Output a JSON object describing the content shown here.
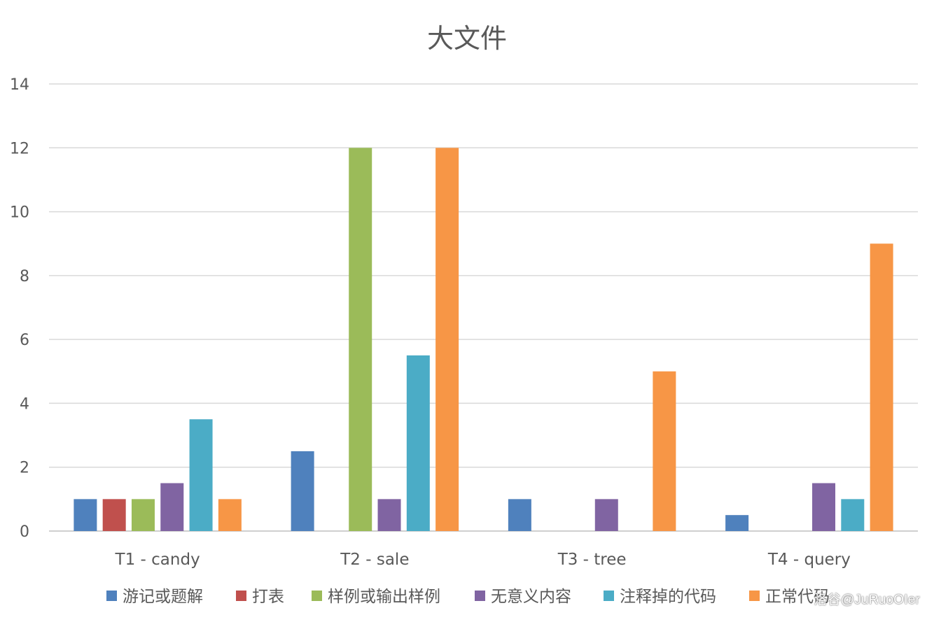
{
  "chart_data": {
    "type": "bar",
    "title": "大文件",
    "categories": [
      "T1 - candy",
      "T2 - sale",
      "T3 - tree",
      "T4 - query"
    ],
    "ylim": [
      0,
      14
    ],
    "yticks": [
      0,
      2,
      4,
      6,
      8,
      10,
      12,
      14
    ],
    "grid": true,
    "legend_position": "bottom",
    "series": [
      {
        "name": "游记或题解",
        "color": "#4F81BD",
        "values": [
          1,
          2.5,
          1,
          0.5
        ]
      },
      {
        "name": "打表",
        "color": "#C0504D",
        "values": [
          1,
          0,
          0,
          0
        ]
      },
      {
        "name": "样例或输出样例",
        "color": "#9BBB59",
        "values": [
          1,
          12,
          0,
          0
        ]
      },
      {
        "name": "无意义内容",
        "color": "#8064A2",
        "values": [
          1.5,
          1,
          1,
          1.5
        ]
      },
      {
        "name": "注释掉的代码",
        "color": "#4BACC6",
        "values": [
          3.5,
          5.5,
          0,
          1
        ]
      },
      {
        "name": "正常代码",
        "color": "#F79646",
        "values": [
          1,
          12,
          5,
          9
        ]
      }
    ]
  },
  "watermark": "洛谷@JuRuoOIer"
}
